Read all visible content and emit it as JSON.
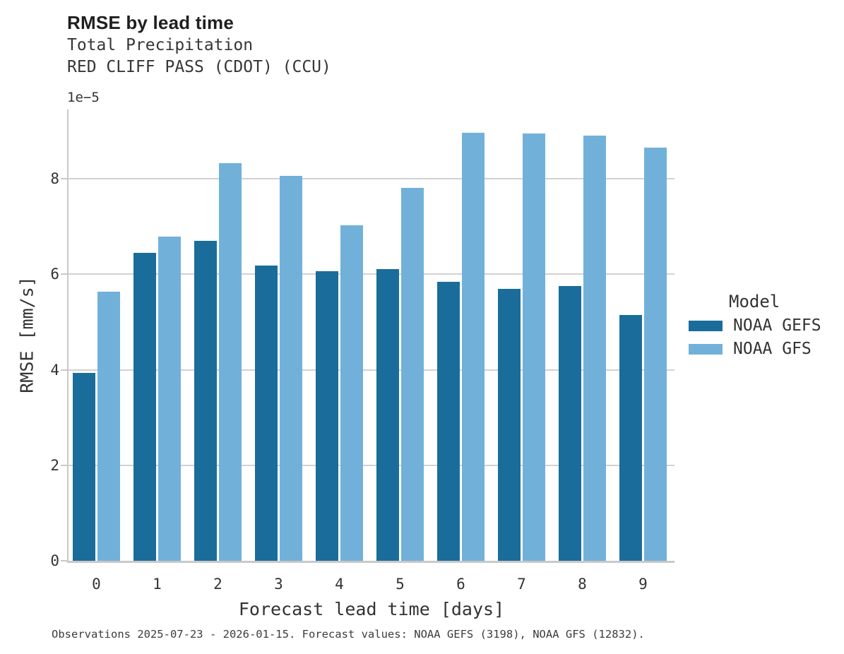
{
  "chart_data": {
    "type": "bar",
    "title": "RMSE by lead time",
    "subtitle": [
      "Total Precipitation",
      "RED CLIFF PASS (CDOT) (CCU)"
    ],
    "y_offset_label": "1e−5",
    "xlabel": "Forecast lead time [days]",
    "ylabel": "RMSE [mm/s]",
    "categories": [
      "0",
      "1",
      "2",
      "3",
      "4",
      "5",
      "6",
      "7",
      "8",
      "9"
    ],
    "series": [
      {
        "name": "NOAA GEFS",
        "color": "#1a6d9a",
        "values": [
          3.94,
          6.45,
          6.7,
          6.18,
          6.06,
          6.11,
          5.84,
          5.69,
          5.75,
          5.15
        ]
      },
      {
        "name": "NOAA GFS",
        "color": "#71b1d9",
        "values": [
          5.63,
          6.79,
          8.33,
          8.06,
          7.02,
          7.81,
          8.96,
          8.95,
          8.9,
          8.65
        ]
      }
    ],
    "ylim": [
      0,
      9.45
    ],
    "yticks": [
      0,
      2,
      4,
      6,
      8
    ],
    "grid": "horizontal",
    "legend_title": "Model",
    "legend_position": "right",
    "caption": "Observations 2025-07-23 - 2026-01-15. Forecast values: NOAA GEFS (3198), NOAA GFS (12832)."
  }
}
